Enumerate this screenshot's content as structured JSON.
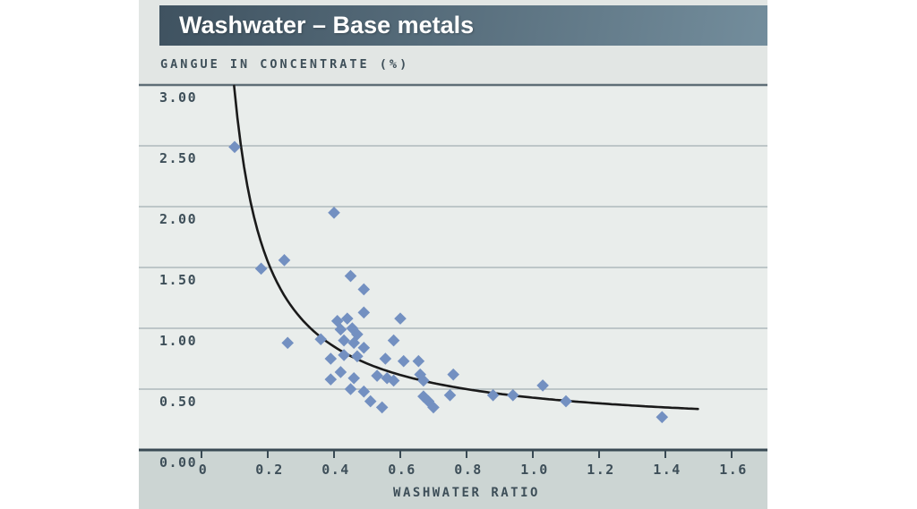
{
  "header": {
    "title": "Washwater – Base metals"
  },
  "colors": {
    "header_gradient_left": "#3f5260",
    "header_gradient_right": "#738d9c",
    "panel_bg": "#e2e6e4",
    "plot_bg": "#e9edeb",
    "axis_strip_bg": "#ccd5d3",
    "gridline": "#a3aeb4",
    "plot_top_border": "#5f6e76",
    "axis_line": "#394a54",
    "label_text": "#3e4f59",
    "marker": "#7390c1",
    "curve": "#1a1a1a",
    "title_text": "#ffffff"
  },
  "chart_data": {
    "type": "scatter",
    "title": "Washwater – Base metals",
    "ylabel": "GANGUE IN CONCENTRATE (%)",
    "xlabel": "WASHWATER RATIO",
    "xlim": [
      0,
      1.71
    ],
    "ylim": [
      0,
      3.0
    ],
    "x_ticks": [
      0,
      0.2,
      0.4,
      0.6,
      0.8,
      1.0,
      1.2,
      1.4,
      1.6
    ],
    "x_tick_labels": [
      "0",
      "0.2",
      "0.4",
      "0.6",
      "0.8",
      "1.0",
      "1.2",
      "1.4",
      "1.6"
    ],
    "y_ticks": [
      3.0,
      2.5,
      2.0,
      1.5,
      1.0,
      0.5,
      0.0
    ],
    "y_tick_labels": [
      "3.00",
      "2.50",
      "2.00",
      "1.50",
      "1.00",
      "0.50",
      "0.00"
    ],
    "grid": "horizontal",
    "legend": "none",
    "marker_shape": "diamond",
    "points": [
      [
        0.1,
        2.49
      ],
      [
        0.4,
        1.95
      ],
      [
        0.25,
        1.56
      ],
      [
        0.18,
        1.49
      ],
      [
        0.45,
        1.43
      ],
      [
        0.49,
        1.32
      ],
      [
        0.49,
        1.13
      ],
      [
        0.6,
        1.08
      ],
      [
        0.26,
        0.88
      ],
      [
        0.36,
        0.91
      ],
      [
        0.41,
        1.06
      ],
      [
        0.44,
        1.08
      ],
      [
        0.42,
        0.99
      ],
      [
        0.455,
        1.0
      ],
      [
        0.47,
        0.95
      ],
      [
        0.43,
        0.9
      ],
      [
        0.46,
        0.88
      ],
      [
        0.49,
        0.84
      ],
      [
        0.58,
        0.9
      ],
      [
        0.39,
        0.75
      ],
      [
        0.43,
        0.78
      ],
      [
        0.47,
        0.77
      ],
      [
        0.42,
        0.64
      ],
      [
        0.39,
        0.58
      ],
      [
        0.46,
        0.59
      ],
      [
        0.53,
        0.61
      ],
      [
        0.555,
        0.75
      ],
      [
        0.56,
        0.59
      ],
      [
        0.58,
        0.57
      ],
      [
        0.45,
        0.5
      ],
      [
        0.49,
        0.48
      ],
      [
        0.51,
        0.4
      ],
      [
        0.545,
        0.35
      ],
      [
        0.61,
        0.73
      ],
      [
        0.655,
        0.73
      ],
      [
        0.66,
        0.62
      ],
      [
        0.67,
        0.57
      ],
      [
        0.67,
        0.44
      ],
      [
        0.685,
        0.4
      ],
      [
        0.7,
        0.35
      ],
      [
        0.75,
        0.45
      ],
      [
        0.76,
        0.62
      ],
      [
        0.88,
        0.45
      ],
      [
        0.94,
        0.45
      ],
      [
        1.03,
        0.53
      ],
      [
        1.1,
        0.4
      ],
      [
        1.39,
        0.27
      ]
    ],
    "trend_curve": {
      "model": "y = a/x + c",
      "a": 0.28,
      "c": 0.15,
      "x_start": 0.0985,
      "x_end": 1.5
    }
  }
}
